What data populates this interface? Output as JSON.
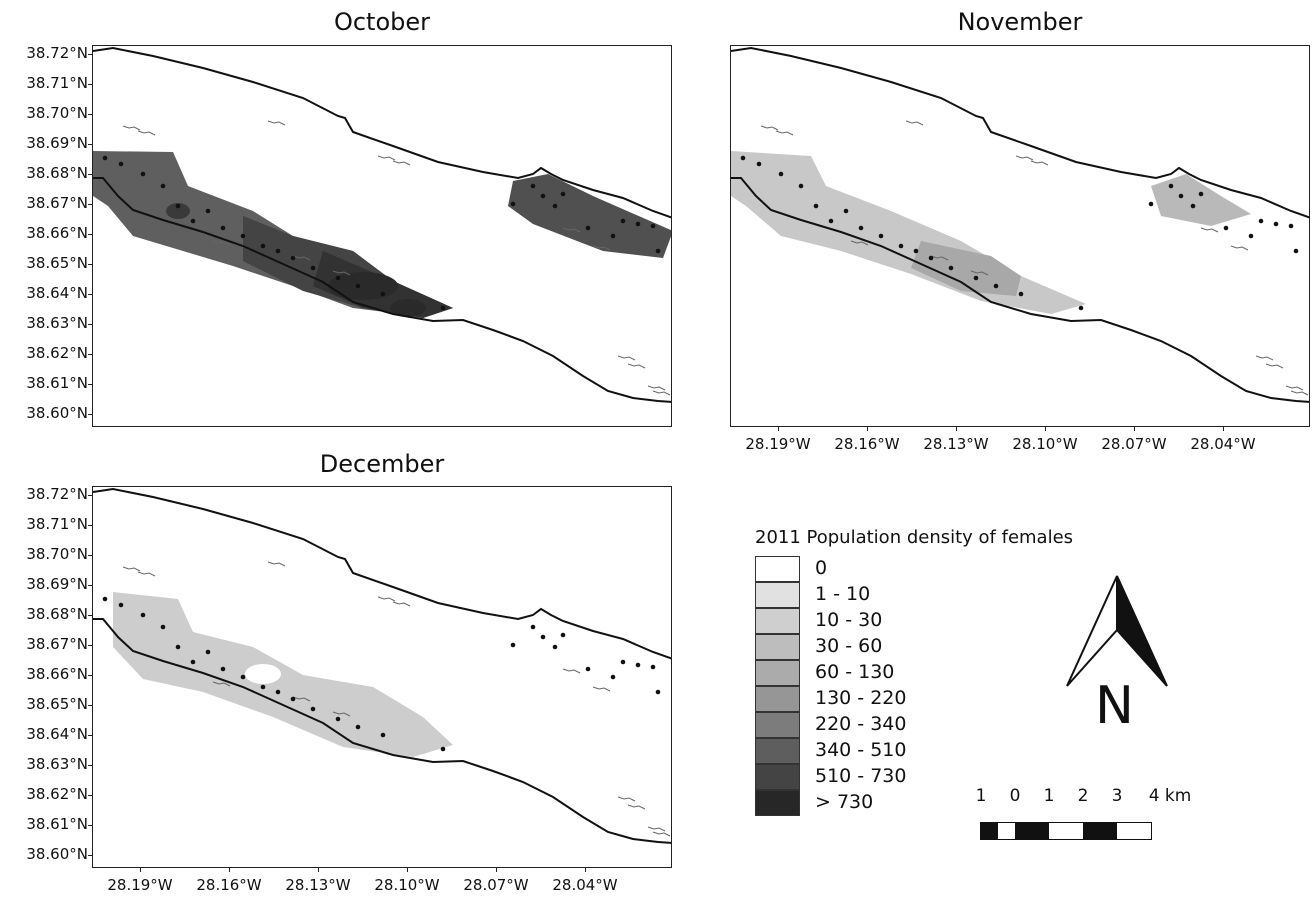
{
  "panels": [
    {
      "id": "october",
      "title": "October",
      "shade": [
        95,
        80,
        68,
        58,
        50,
        42
      ]
    },
    {
      "id": "november",
      "title": "November",
      "shade": [
        200,
        185,
        175,
        168,
        160,
        155
      ]
    },
    {
      "id": "december",
      "title": "December",
      "shade": [
        205,
        195,
        190,
        185,
        180,
        175
      ]
    }
  ],
  "y_axis_labels": [
    "38.72°N",
    "38.71°N",
    "38.70°N",
    "38.69°N",
    "38.68°N",
    "38.67°N",
    "38.66°N",
    "38.65°N",
    "38.64°N",
    "38.63°N",
    "38.62°N",
    "38.61°N",
    "38.60°N"
  ],
  "x_axis_labels": [
    "28.19°W",
    "28.16°W",
    "28.13°W",
    "28.10°W",
    "28.07°W",
    "28.04°W"
  ],
  "legend": {
    "title": "2011 Population density of females",
    "classes": [
      {
        "label": "0",
        "color": "#ffffff"
      },
      {
        "label": "1 - 10",
        "color": "#e1e1e1"
      },
      {
        "label": "10 - 30",
        "color": "#cfcfcf"
      },
      {
        "label": "30 - 60",
        "color": "#bdbdbd"
      },
      {
        "label": "60 - 130",
        "color": "#ababab"
      },
      {
        "label": "130 - 220",
        "color": "#969696"
      },
      {
        "label": "220 - 340",
        "color": "#7c7c7c"
      },
      {
        "label": "340 - 510",
        "color": "#5e5e5e"
      },
      {
        "label": "510 - 730",
        "color": "#444444"
      },
      {
        "label": "> 730",
        "color": "#272727"
      }
    ]
  },
  "north_arrow": {
    "letter": "N",
    "icon": "north-arrow-icon"
  },
  "scale_bar": {
    "labels": [
      "1",
      "0",
      "1",
      "2",
      "3",
      "4 km"
    ]
  }
}
